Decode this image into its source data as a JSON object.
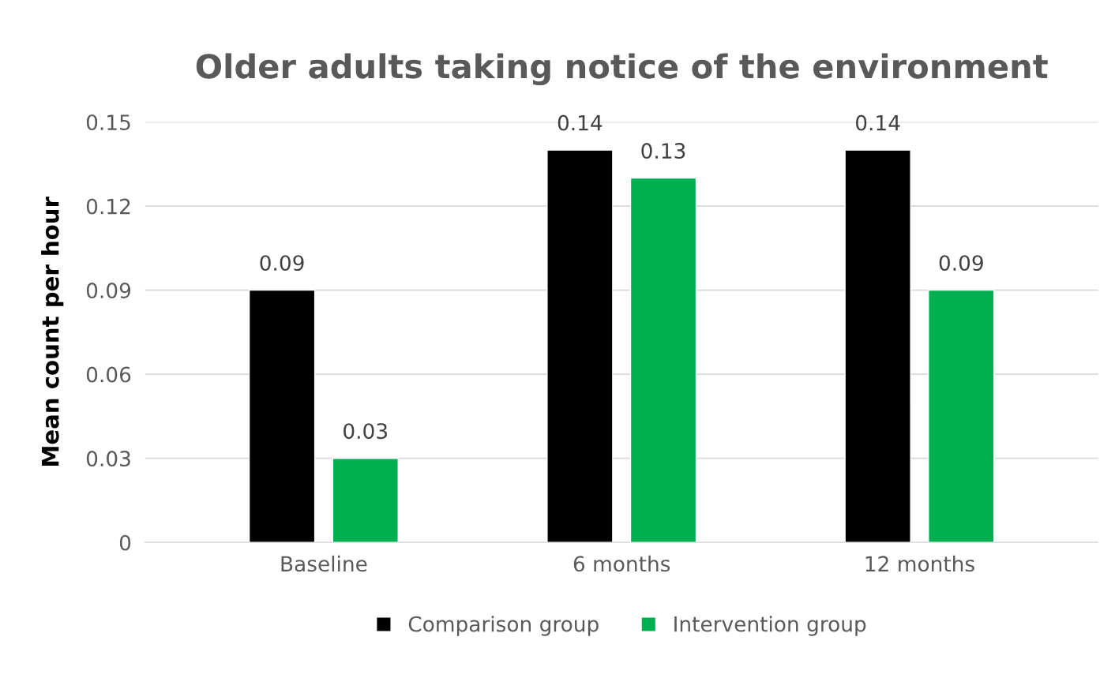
{
  "chart_data": {
    "type": "bar",
    "title": "Older adults taking notice of the environment",
    "ylabel": "Mean count per hour",
    "categories": [
      "Baseline",
      "6 months",
      "12 months"
    ],
    "series": [
      {
        "name": "Comparison group",
        "color": "#000000",
        "values": [
          0.09,
          0.14,
          0.14
        ]
      },
      {
        "name": "Intervention group",
        "color": "#00b050",
        "values": [
          0.03,
          0.13,
          0.09
        ]
      }
    ],
    "ylim": [
      0,
      0.15
    ],
    "yticks": [
      0,
      0.03,
      0.06,
      0.09,
      0.12,
      0.15
    ],
    "grid": "y",
    "legend": "bottom",
    "data_labels": true
  }
}
